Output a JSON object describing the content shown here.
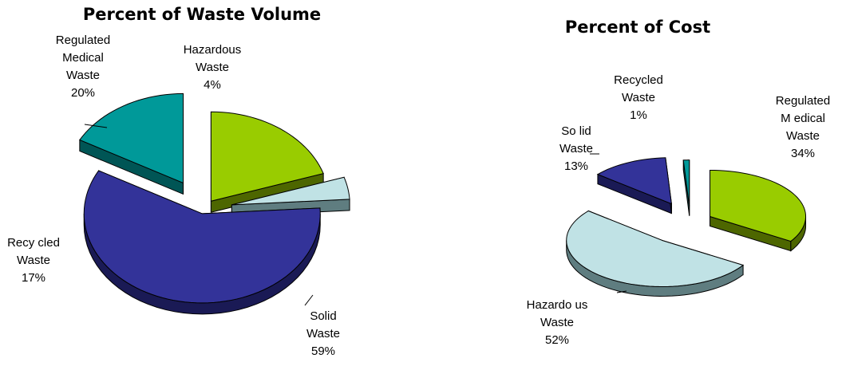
{
  "chart_data": [
    {
      "type": "pie",
      "title": "Percent of Waste Volume",
      "slices": [
        {
          "name": "Regulated Medical Waste",
          "lines": [
            "Regulated",
            "Medical",
            "Waste"
          ],
          "pct_label": "20%",
          "value": 20,
          "color": "#99cc00",
          "side": "#4d6600"
        },
        {
          "name": "Hazardous Waste",
          "lines": [
            "Hazardous",
            "Waste"
          ],
          "pct_label": "4%",
          "value": 4,
          "color": "#c0e2e5",
          "side": "#5f7d80"
        },
        {
          "name": "Solid Waste",
          "lines": [
            "Solid",
            "Waste"
          ],
          "pct_label": "59%",
          "value": 59,
          "color": "#333399",
          "side": "#1a1a55"
        },
        {
          "name": "Recycled Waste",
          "lines": [
            "Recy cled",
            "Waste"
          ],
          "pct_label": "17%",
          "value": 17,
          "color": "#009999",
          "side": "#005555"
        }
      ]
    },
    {
      "type": "pie",
      "title": "Percent of Cost",
      "slices": [
        {
          "name": "Regulated Medical Waste",
          "lines": [
            "Regulated",
            "M edical",
            "Waste"
          ],
          "pct_label": "34%",
          "value": 34,
          "color": "#99cc00",
          "side": "#4d6600"
        },
        {
          "name": "Hazardous Waste",
          "lines": [
            "Hazardo us",
            "Waste"
          ],
          "pct_label": "52%",
          "value": 52,
          "color": "#c0e2e5",
          "side": "#5f7d80"
        },
        {
          "name": "Solid Waste",
          "lines": [
            "So lid",
            "Waste"
          ],
          "pct_label": "13%",
          "value": 13,
          "color": "#333399",
          "side": "#1a1a55"
        },
        {
          "name": "Recycled Waste",
          "lines": [
            "Recycled",
            "Waste"
          ],
          "pct_label": "1%",
          "value": 1,
          "color": "#009999",
          "side": "#005555"
        }
      ]
    }
  ]
}
